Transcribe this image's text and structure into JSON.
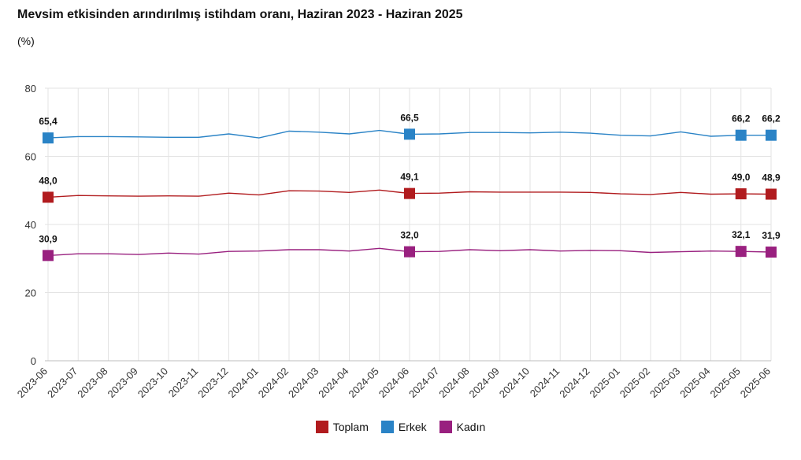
{
  "chart_data": {
    "type": "line",
    "title": "Mevsim etkisinden arındırılmış istihdam oranı, Haziran 2023 - Haziran 2025",
    "subtitle": "(%)",
    "categories": [
      "2023-06",
      "2023-07",
      "2023-08",
      "2023-09",
      "2023-10",
      "2023-11",
      "2023-12",
      "2024-01",
      "2024-02",
      "2024-03",
      "2024-04",
      "2024-05",
      "2024-06",
      "2024-07",
      "2024-08",
      "2024-09",
      "2024-10",
      "2024-11",
      "2024-12",
      "2025-01",
      "2025-02",
      "2025-03",
      "2025-04",
      "2025-05",
      "2025-06"
    ],
    "ylim": [
      0,
      80
    ],
    "yticks": [
      0,
      20,
      40,
      60,
      80
    ],
    "grid": true,
    "legend_position": "bottom",
    "series": [
      {
        "name": "Toplam",
        "color": "#b11b1e",
        "values": [
          48.0,
          48.5,
          48.4,
          48.3,
          48.4,
          48.3,
          49.2,
          48.7,
          49.9,
          49.8,
          49.4,
          50.1,
          49.1,
          49.2,
          49.6,
          49.5,
          49.5,
          49.5,
          49.4,
          49.0,
          48.8,
          49.4,
          48.9,
          49.0,
          48.9
        ]
      },
      {
        "name": "Erkek",
        "color": "#2a83c6",
        "values": [
          65.4,
          65.8,
          65.8,
          65.7,
          65.6,
          65.6,
          66.6,
          65.4,
          67.4,
          67.1,
          66.6,
          67.6,
          66.5,
          66.6,
          67.0,
          67.0,
          66.9,
          67.1,
          66.8,
          66.2,
          66.0,
          67.2,
          65.9,
          66.2,
          66.2
        ]
      },
      {
        "name": "Kadın",
        "color": "#99207f",
        "values": [
          30.9,
          31.4,
          31.4,
          31.2,
          31.6,
          31.3,
          32.1,
          32.2,
          32.6,
          32.6,
          32.2,
          33.0,
          32.0,
          32.1,
          32.6,
          32.3,
          32.6,
          32.2,
          32.4,
          32.3,
          31.8,
          32.0,
          32.2,
          32.1,
          31.9
        ]
      }
    ],
    "data_labels": [
      {
        "series": 1,
        "index": 0,
        "text": "65,4"
      },
      {
        "series": 1,
        "index": 12,
        "text": "66,5"
      },
      {
        "series": 1,
        "index": 23,
        "text": "66,2"
      },
      {
        "series": 1,
        "index": 24,
        "text": "66,2"
      },
      {
        "series": 0,
        "index": 0,
        "text": "48,0"
      },
      {
        "series": 0,
        "index": 12,
        "text": "49,1"
      },
      {
        "series": 0,
        "index": 23,
        "text": "49,0"
      },
      {
        "series": 0,
        "index": 24,
        "text": "48,9"
      },
      {
        "series": 2,
        "index": 0,
        "text": "30,9"
      },
      {
        "series": 2,
        "index": 12,
        "text": "32,0"
      },
      {
        "series": 2,
        "index": 23,
        "text": "32,1"
      },
      {
        "series": 2,
        "index": 24,
        "text": "31,9"
      }
    ]
  }
}
